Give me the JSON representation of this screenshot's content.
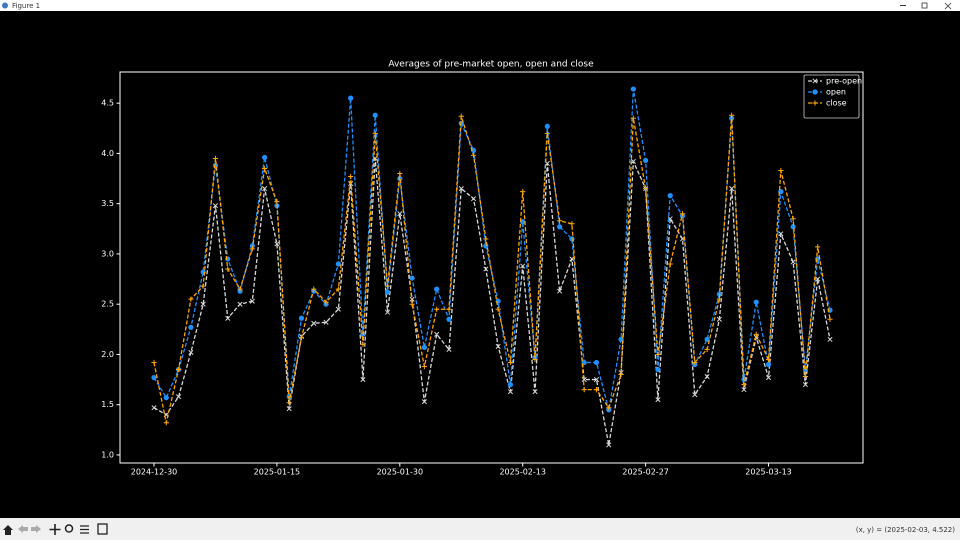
{
  "window": {
    "title": "Figure 1",
    "status": "(x, y) = (2025-02-03, 4.522)"
  },
  "chart_data": {
    "type": "line",
    "title": "Averages of pre-market open, open and close",
    "categories": [
      "2024-12-30",
      null,
      null,
      null,
      null,
      null,
      null,
      null,
      null,
      null,
      "2025-01-15",
      null,
      null,
      null,
      null,
      null,
      null,
      null,
      null,
      null,
      "2025-01-30",
      null,
      null,
      null,
      null,
      null,
      null,
      null,
      null,
      null,
      "2025-02-13",
      null,
      null,
      null,
      null,
      null,
      null,
      null,
      null,
      null,
      "2025-02-27",
      null,
      null,
      null,
      null,
      null,
      null,
      null,
      null,
      null,
      "2025-03-13",
      null,
      null,
      null,
      null,
      null
    ],
    "series": [
      {
        "name": "pre-open",
        "color": "#d9d9d9",
        "marker": "x",
        "values": [
          1.47,
          1.4,
          1.58,
          2.02,
          2.5,
          3.48,
          2.36,
          2.5,
          2.53,
          3.65,
          3.1,
          1.46,
          2.18,
          2.31,
          2.32,
          2.45,
          3.7,
          1.75,
          3.95,
          2.42,
          3.4,
          2.55,
          1.53,
          2.2,
          2.05,
          3.65,
          3.55,
          2.85,
          2.08,
          1.63,
          2.88,
          1.63,
          3.9,
          2.63,
          2.95,
          1.75,
          1.75,
          1.1,
          1.82,
          3.92,
          3.65,
          1.55,
          3.35,
          3.15,
          1.6,
          1.78,
          2.35,
          3.65,
          1.65,
          2.17,
          1.77,
          3.2,
          2.92,
          1.7,
          2.75,
          2.15
        ]
      },
      {
        "name": "open",
        "color": "#1e90ff",
        "marker": "o",
        "values": [
          1.77,
          1.57,
          1.85,
          2.27,
          2.82,
          3.88,
          2.95,
          2.63,
          3.08,
          3.96,
          3.48,
          1.58,
          2.36,
          2.63,
          2.5,
          2.9,
          4.55,
          2.2,
          4.38,
          2.62,
          3.75,
          2.76,
          2.07,
          2.65,
          2.35,
          4.3,
          4.03,
          3.08,
          2.53,
          1.7,
          3.32,
          1.97,
          4.27,
          3.27,
          3.15,
          1.92,
          1.92,
          1.45,
          2.15,
          4.64,
          3.93,
          1.85,
          3.58,
          3.38,
          1.9,
          2.15,
          2.6,
          4.35,
          1.75,
          2.52,
          1.9,
          3.62,
          3.27,
          1.85,
          2.95,
          2.44
        ]
      },
      {
        "name": "close",
        "color": "#ffa500",
        "marker": "+",
        "values": [
          1.92,
          1.32,
          1.85,
          2.55,
          2.68,
          3.95,
          2.85,
          2.65,
          3.05,
          3.85,
          3.52,
          1.52,
          2.17,
          2.65,
          2.52,
          2.65,
          3.77,
          2.1,
          4.2,
          2.68,
          3.8,
          2.5,
          1.88,
          2.45,
          2.45,
          4.37,
          3.98,
          3.15,
          2.45,
          1.92,
          3.62,
          1.95,
          4.2,
          3.33,
          3.3,
          1.65,
          1.65,
          1.47,
          1.8,
          4.35,
          3.65,
          2.0,
          2.9,
          3.4,
          1.92,
          2.05,
          2.55,
          4.38,
          1.7,
          2.2,
          1.95,
          3.83,
          3.35,
          1.78,
          3.07,
          2.35
        ]
      }
    ],
    "ylim": [
      0.92,
      4.81
    ],
    "yticks": [
      {
        "value": 1,
        "label": "1.0"
      },
      1.5,
      {
        "value": 2,
        "label": "2.0"
      },
      2.5,
      {
        "value": 3,
        "label": "3.0"
      },
      3.5,
      {
        "value": 4,
        "label": "4.0"
      },
      4.5
    ],
    "legend": "upper right"
  }
}
